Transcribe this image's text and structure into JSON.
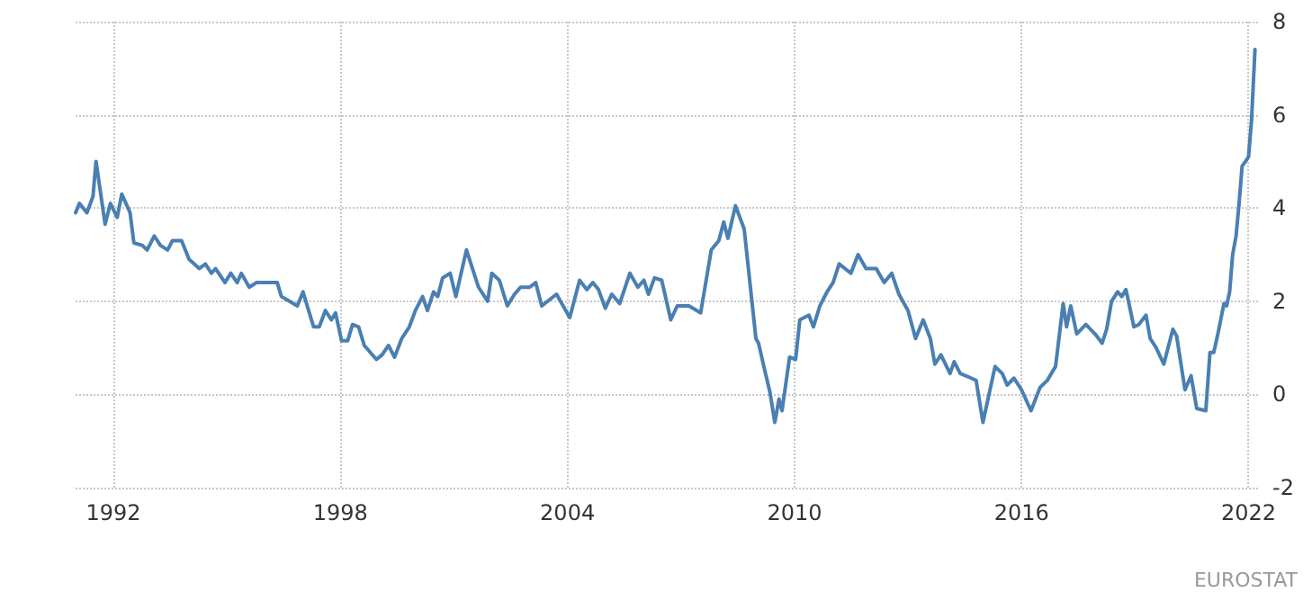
{
  "chart_data": {
    "type": "line",
    "x": [
      1991.0,
      1991.1,
      1991.3,
      1991.46,
      1991.54,
      1991.78,
      1991.92,
      1992.1,
      1992.22,
      1992.44,
      1992.54,
      1992.76,
      1992.89,
      1993.08,
      1993.24,
      1993.43,
      1993.56,
      1993.8,
      1994.0,
      1994.27,
      1994.43,
      1994.59,
      1994.7,
      1994.95,
      1995.1,
      1995.27,
      1995.38,
      1995.59,
      1995.78,
      1996.33,
      1996.44,
      1996.65,
      1996.86,
      1997.01,
      1997.29,
      1997.44,
      1997.6,
      1997.76,
      1997.87,
      1998.03,
      1998.19,
      1998.32,
      1998.48,
      1998.63,
      1998.95,
      1999.1,
      1999.27,
      1999.43,
      1999.62,
      1999.82,
      1999.98,
      2000.17,
      2000.3,
      2000.46,
      2000.57,
      2000.7,
      2000.9,
      2001.05,
      2001.33,
      2001.65,
      2001.89,
      2002.0,
      2002.2,
      2002.41,
      2002.6,
      2002.76,
      2003.0,
      2003.16,
      2003.32,
      2003.71,
      2004.06,
      2004.32,
      2004.51,
      2004.67,
      2004.82,
      2005.0,
      2005.17,
      2005.38,
      2005.65,
      2005.86,
      2006.02,
      2006.14,
      2006.3,
      2006.49,
      2006.73,
      2006.9,
      2007.21,
      2007.52,
      2007.8,
      2008.0,
      2008.13,
      2008.24,
      2008.44,
      2008.67,
      2008.98,
      2009.05,
      2009.19,
      2009.35,
      2009.48,
      2009.59,
      2009.67,
      2009.87,
      2010.03,
      2010.14,
      2010.38,
      2010.5,
      2010.67,
      2010.86,
      2011.02,
      2011.18,
      2011.49,
      2011.68,
      2011.89,
      2012.16,
      2012.37,
      2012.57,
      2012.76,
      2013.0,
      2013.2,
      2013.4,
      2013.59,
      2013.71,
      2013.87,
      2014.11,
      2014.22,
      2014.38,
      2014.67,
      2014.8,
      2014.98,
      2015.3,
      2015.49,
      2015.62,
      2015.8,
      2016.0,
      2016.25,
      2016.49,
      2016.68,
      2016.9,
      2017.1,
      2017.19,
      2017.3,
      2017.46,
      2017.7,
      2017.94,
      2018.13,
      2018.25,
      2018.38,
      2018.54,
      2018.65,
      2018.76,
      2018.97,
      2019.1,
      2019.29,
      2019.4,
      2019.56,
      2019.76,
      2020.0,
      2020.1,
      2020.32,
      2020.48,
      2020.63,
      2020.87,
      2020.98,
      2021.08,
      2021.19,
      2021.35,
      2021.42,
      2021.5,
      2021.58,
      2021.67,
      2021.75,
      2021.83,
      2021.92,
      2022.0,
      2022.08,
      2022.17
    ],
    "series": [
      {
        "color": "#4a7fb2",
        "values": [
          3.9,
          4.1,
          3.9,
          4.25,
          5.0,
          3.65,
          4.1,
          3.8,
          4.3,
          3.9,
          3.25,
          3.2,
          3.1,
          3.4,
          3.2,
          3.1,
          3.3,
          3.3,
          2.9,
          2.7,
          2.8,
          2.6,
          2.7,
          2.4,
          2.6,
          2.4,
          2.6,
          2.3,
          2.4,
          2.4,
          2.1,
          2.0,
          1.9,
          2.2,
          1.45,
          1.45,
          1.8,
          1.6,
          1.75,
          1.15,
          1.15,
          1.5,
          1.45,
          1.05,
          0.75,
          0.85,
          1.05,
          0.8,
          1.2,
          1.45,
          1.8,
          2.1,
          1.8,
          2.2,
          2.1,
          2.5,
          2.6,
          2.1,
          3.1,
          2.3,
          2.0,
          2.6,
          2.45,
          1.9,
          2.15,
          2.3,
          2.3,
          2.4,
          1.9,
          2.15,
          1.65,
          2.45,
          2.25,
          2.4,
          2.25,
          1.85,
          2.15,
          1.95,
          2.6,
          2.3,
          2.45,
          2.15,
          2.5,
          2.45,
          1.6,
          1.9,
          1.9,
          1.75,
          3.1,
          3.3,
          3.7,
          3.35,
          4.05,
          3.55,
          1.2,
          1.1,
          0.6,
          0.05,
          -0.6,
          -0.1,
          -0.35,
          0.8,
          0.75,
          1.6,
          1.7,
          1.45,
          1.9,
          2.2,
          2.4,
          2.8,
          2.6,
          3.0,
          2.7,
          2.7,
          2.4,
          2.6,
          2.15,
          1.8,
          1.2,
          1.6,
          1.2,
          0.65,
          0.85,
          0.45,
          0.7,
          0.45,
          0.35,
          0.3,
          -0.6,
          0.6,
          0.45,
          0.2,
          0.35,
          0.1,
          -0.35,
          0.15,
          0.3,
          0.6,
          1.95,
          1.45,
          1.9,
          1.3,
          1.5,
          1.3,
          1.1,
          1.4,
          2.0,
          2.2,
          2.1,
          2.25,
          1.45,
          1.5,
          1.7,
          1.2,
          1.0,
          0.65,
          1.4,
          1.25,
          0.1,
          0.4,
          -0.3,
          -0.35,
          0.9,
          0.9,
          1.3,
          1.95,
          1.9,
          2.2,
          3.0,
          3.4,
          4.1,
          4.9,
          5.0,
          5.1,
          5.9,
          7.4
        ]
      }
    ],
    "xlim": [
      1991,
      2022.25
    ],
    "xticks": [
      1992,
      1998,
      2004,
      2010,
      2016,
      2022
    ],
    "ylim": [
      -2,
      8
    ],
    "yticks": [
      -2,
      0,
      2,
      4,
      6,
      8
    ],
    "grid": true,
    "marker": "none",
    "line_style": "solid",
    "annotations": [
      "EUROSTAT"
    ]
  }
}
